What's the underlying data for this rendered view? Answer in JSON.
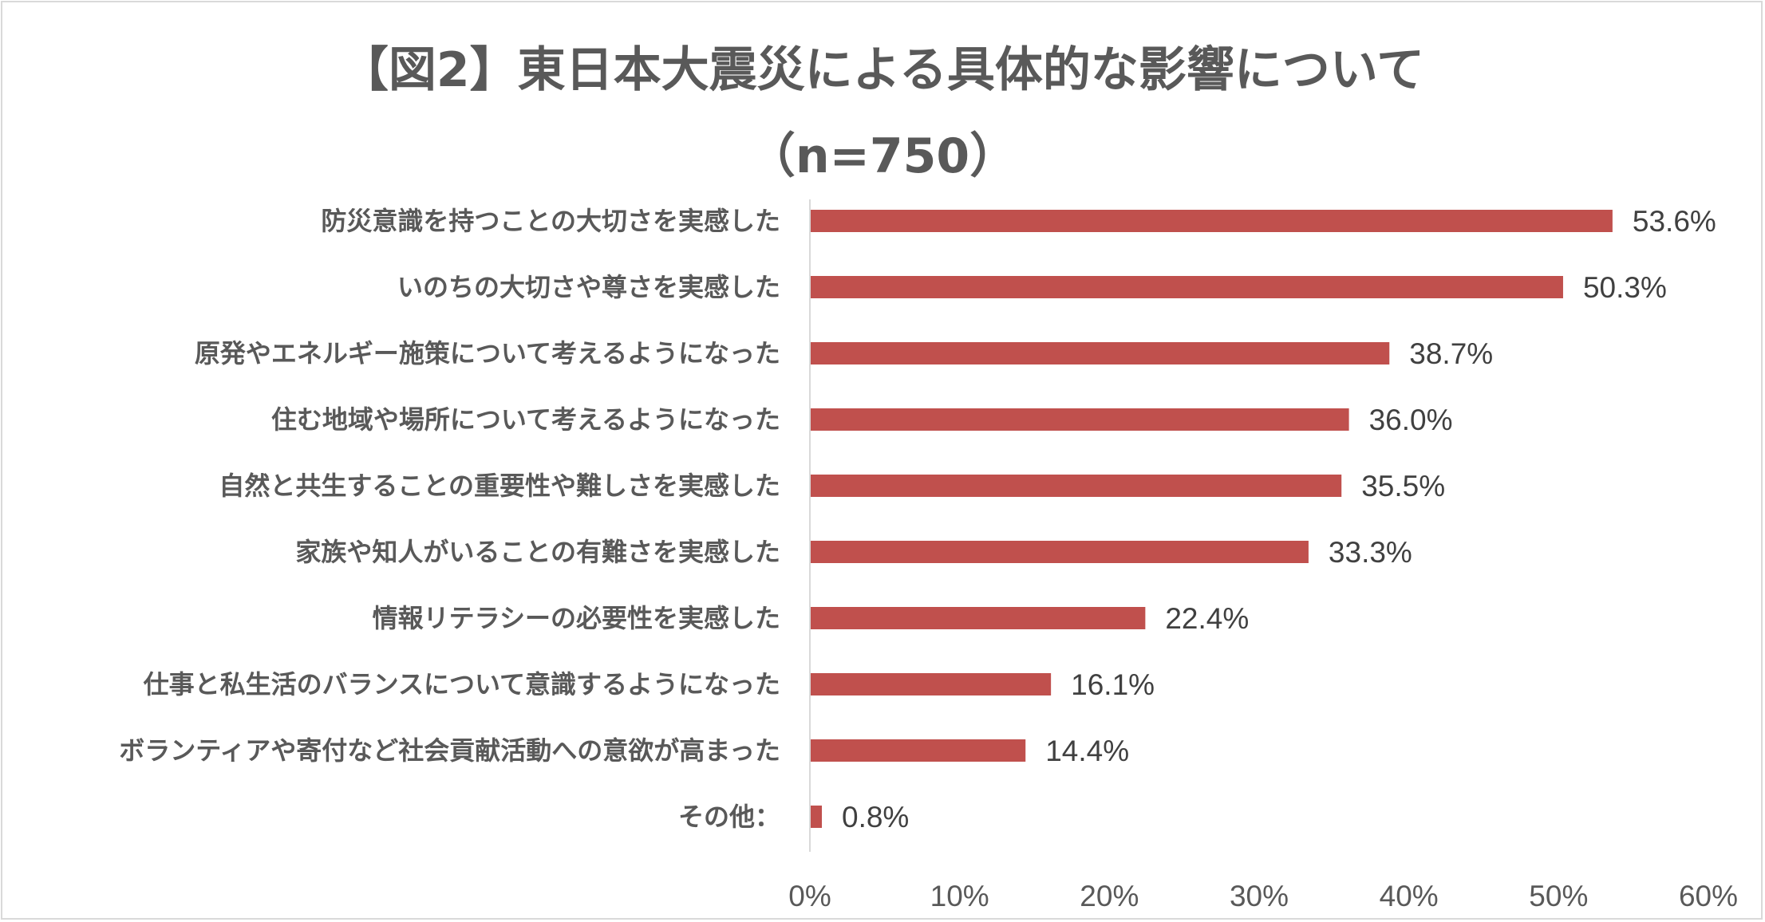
{
  "chart_data": {
    "type": "bar",
    "orientation": "horizontal",
    "title": "【図2】東日本大震災による具体的な影響について",
    "subtitle": "（n=750）",
    "categories": [
      "防災意識を持つことの大切さを実感した",
      "いのちの大切さや尊さを実感した",
      "原発やエネルギー施策について考えるようになった",
      "住む地域や場所について考えるようになった",
      "自然と共生することの重要性や難しさを実感した",
      "家族や知人がいることの有難さを実感した",
      "情報リテラシーの必要性を実感した",
      "仕事と私生活のバランスについて意識するようになった",
      "ボランティアや寄付など社会貢献活動への意欲が高まった",
      "その他："
    ],
    "values": [
      53.6,
      50.3,
      38.7,
      36.0,
      35.5,
      33.3,
      22.4,
      16.1,
      14.4,
      0.8
    ],
    "value_labels": [
      "53.6%",
      "50.3%",
      "38.7%",
      "36.0%",
      "35.5%",
      "33.3%",
      "22.4%",
      "16.1%",
      "14.4%",
      "0.8%"
    ],
    "xlim": [
      0,
      60
    ],
    "xticks": [
      0,
      10,
      20,
      30,
      40,
      50,
      60
    ],
    "xtick_labels": [
      "0%",
      "10%",
      "20%",
      "30%",
      "40%",
      "50%",
      "60%"
    ],
    "xlabel": "",
    "ylabel": "",
    "grid": false,
    "legend": "none",
    "bar_color": "#c0504d"
  }
}
